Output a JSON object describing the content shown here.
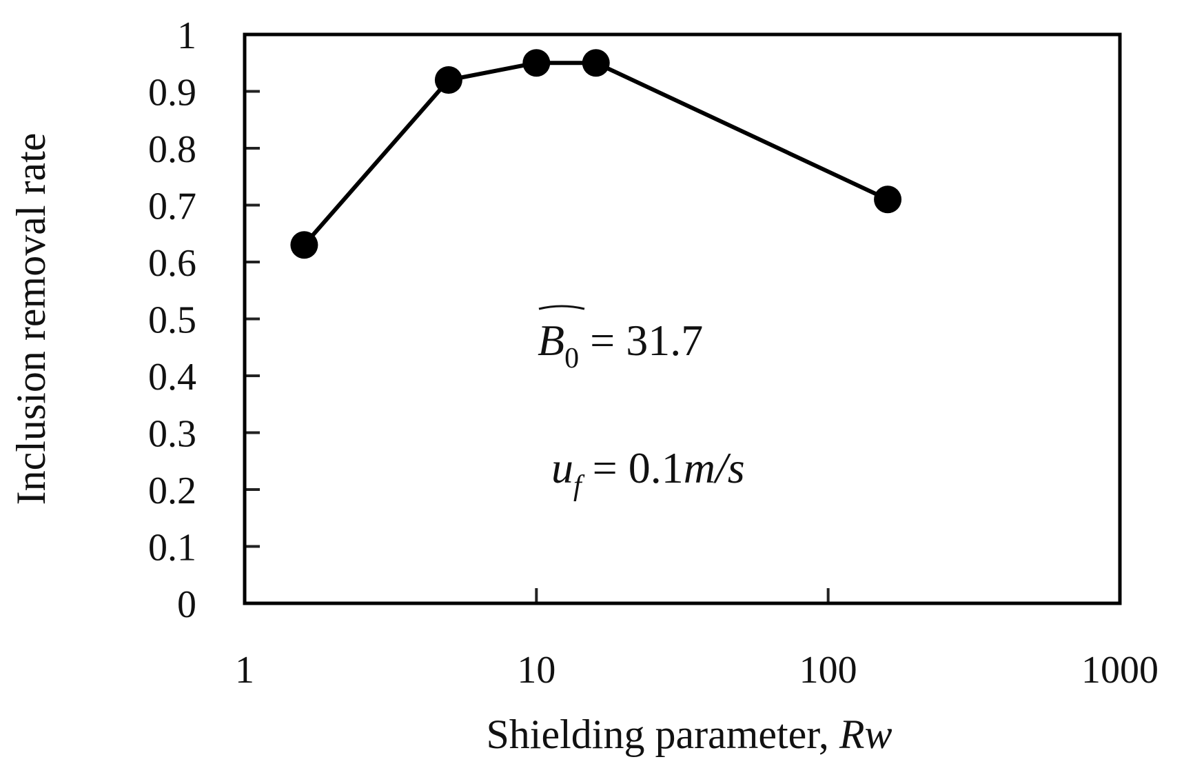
{
  "chart_data": {
    "type": "line",
    "title": "",
    "xlabel": "Shielding parameter, ",
    "xlabel_italic": "Rw",
    "ylabel": "Inclusion removal rate",
    "x_scale": "log",
    "xlim": [
      1,
      1000
    ],
    "ylim": [
      0,
      1
    ],
    "x_ticks": [
      1,
      10,
      100,
      1000
    ],
    "x_tick_labels": [
      "1",
      "10",
      "100",
      "1000"
    ],
    "y_ticks": [
      0,
      0.1,
      0.2,
      0.3,
      0.4,
      0.5,
      0.6,
      0.7,
      0.8,
      0.9,
      1
    ],
    "y_tick_labels": [
      "0",
      "0.1",
      "0.2",
      "0.3",
      "0.4",
      "0.5",
      "0.6",
      "0.7",
      "0.8",
      "0.9",
      "1"
    ],
    "grid": false,
    "legend": "none",
    "series": [
      {
        "x": [
          1.6,
          5,
          10,
          16,
          160
        ],
        "y": [
          0.63,
          0.92,
          0.95,
          0.95,
          0.71
        ],
        "color": "#000000",
        "marker": "circle"
      }
    ],
    "annotations": [
      {
        "main": "B",
        "sub": "0",
        "rest": " = 31.7"
      },
      {
        "main": "u",
        "sub": "f",
        "rest": " = 0.1",
        "unit": "m/s"
      }
    ]
  }
}
